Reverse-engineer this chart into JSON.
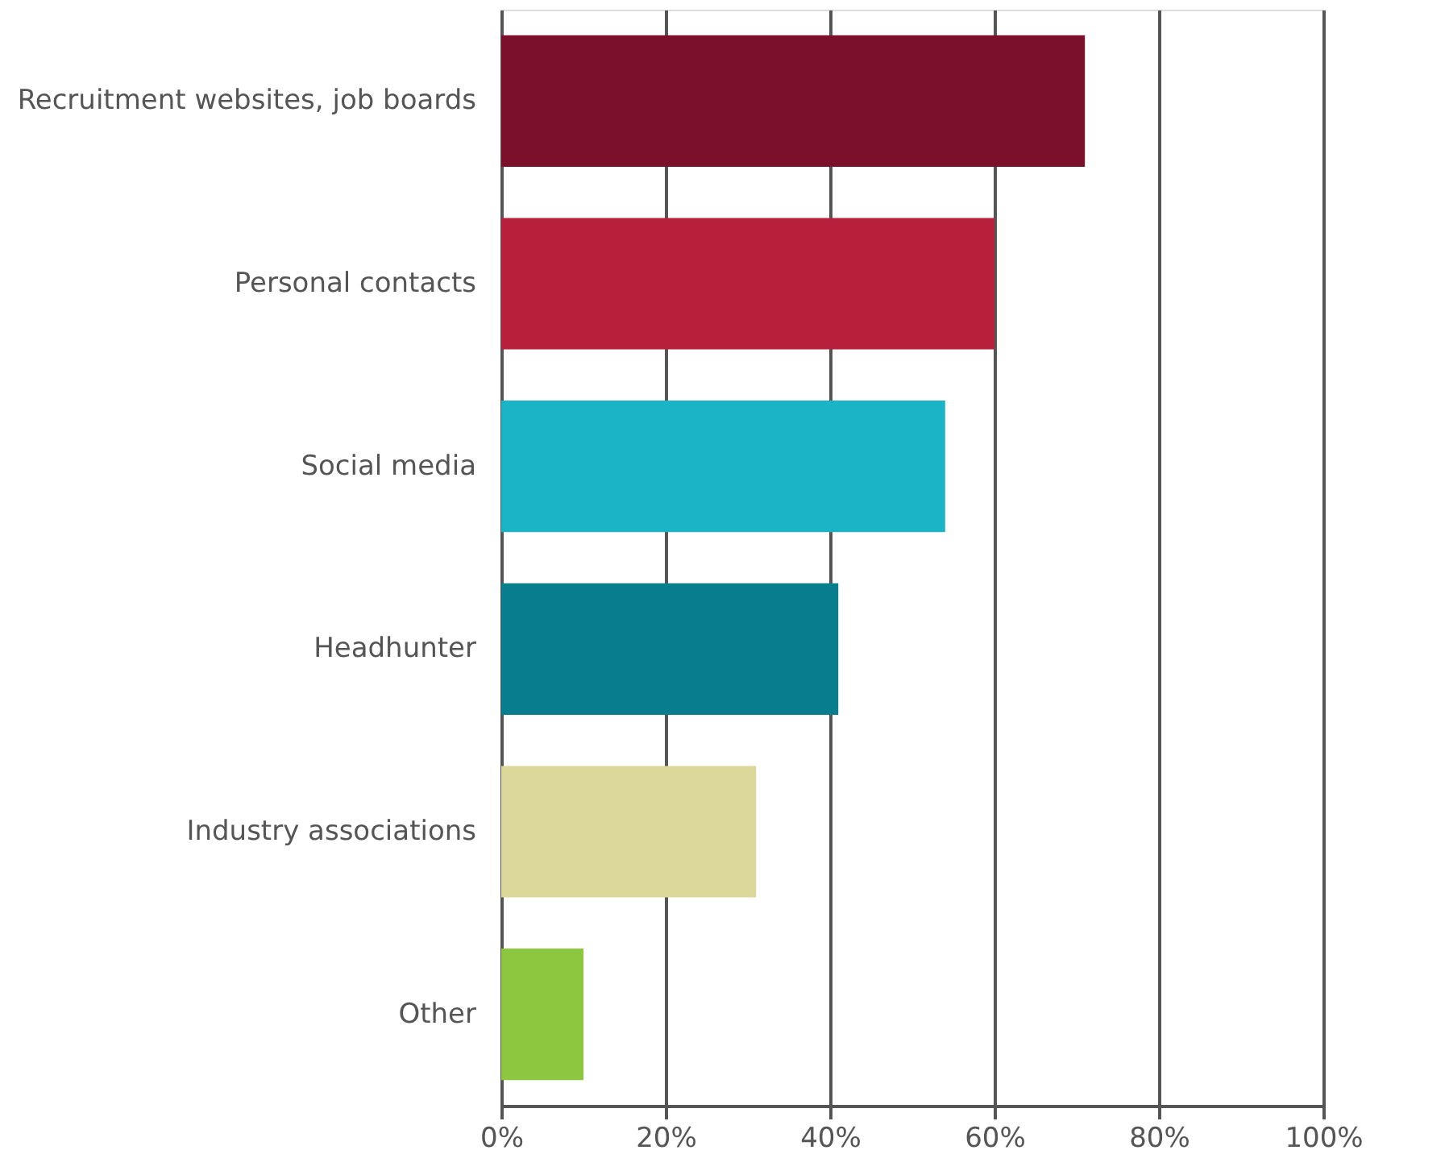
{
  "chart_data": {
    "type": "bar",
    "orientation": "horizontal",
    "categories": [
      "Recruitment websites, job boards",
      "Personal contacts",
      "Social media",
      "Headhunter",
      "Industry associations",
      "Other"
    ],
    "values": [
      71,
      60,
      54,
      41,
      31,
      10
    ],
    "colors": [
      "#7a1029",
      "#b81f3a",
      "#1bb4c6",
      "#087d8e",
      "#dcd79b",
      "#8dc63f"
    ],
    "xlim": [
      0,
      100
    ],
    "xticks": [
      {
        "value": 0,
        "label": "0%"
      },
      {
        "value": 20,
        "label": "20%"
      },
      {
        "value": 40,
        "label": "40%"
      },
      {
        "value": 60,
        "label": "60%"
      },
      {
        "value": 80,
        "label": "80%"
      },
      {
        "value": 100,
        "label": "100%"
      }
    ],
    "grid": "x"
  }
}
